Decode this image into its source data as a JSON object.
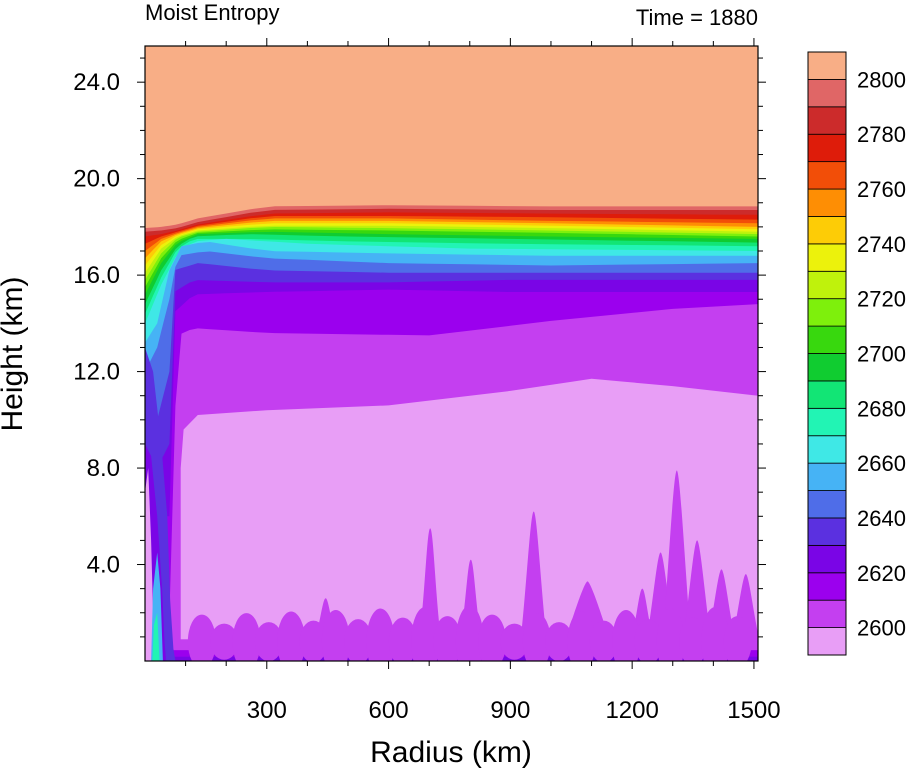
{
  "chart_data": {
    "type": "heatmap",
    "title": "Moist Entropy",
    "subtitle": "Time = 1880",
    "xlabel": "Radius (km)",
    "ylabel": "Height (km)",
    "xlim": [
      0,
      1510
    ],
    "ylim": [
      0,
      25.5
    ],
    "xticks": [
      300,
      600,
      900,
      1200,
      1500
    ],
    "xtick_labels": [
      "300",
      "600",
      "900",
      "1200",
      "1500"
    ],
    "yticks": [
      4,
      8,
      12,
      16,
      20,
      24
    ],
    "ytick_labels": [
      "4.0",
      "8.0",
      "12.0",
      "16.0",
      "20.0",
      "24.0"
    ],
    "colorbar": {
      "levels": [
        2600,
        2610,
        2620,
        2630,
        2640,
        2650,
        2660,
        2670,
        2680,
        2690,
        2700,
        2710,
        2720,
        2730,
        2740,
        2750,
        2760,
        2770,
        2780,
        2790,
        2800
      ],
      "labels": [
        "2600",
        "2620",
        "2640",
        "2660",
        "2680",
        "2700",
        "2720",
        "2740",
        "2760",
        "2780",
        "2800"
      ],
      "colors": [
        "#e89ef6",
        "#c43ff0",
        "#9b00ee",
        "#7a05e6",
        "#5b30e0",
        "#4f6de8",
        "#46b3f5",
        "#3fe8e6",
        "#22f4b4",
        "#12e575",
        "#10cc30",
        "#38d80e",
        "#7ef00c",
        "#bff20c",
        "#ecf20c",
        "#fdcc06",
        "#fe8e04",
        "#f24e08",
        "#de1c0a",
        "#cc2b2b",
        "#e06666",
        "#f8ae86"
      ]
    },
    "height_profile": {
      "description_levels_at_radius_600km": [
        {
          "z": 0.3,
          "value": 2630
        },
        {
          "z": 0.6,
          "value": 2620
        },
        {
          "z": 1.5,
          "value": 2610
        },
        {
          "z": 9.5,
          "value": 2600
        },
        {
          "z": 12.5,
          "value": 2610
        },
        {
          "z": 14.8,
          "value": 2620
        },
        {
          "z": 15.8,
          "value": 2630
        },
        {
          "z": 16.3,
          "value": 2650
        },
        {
          "z": 16.8,
          "value": 2670
        },
        {
          "z": 17.3,
          "value": 2700
        },
        {
          "z": 17.8,
          "value": 2740
        },
        {
          "z": 18.3,
          "value": 2780
        },
        {
          "z": 18.8,
          "value": 2800
        }
      ]
    }
  }
}
